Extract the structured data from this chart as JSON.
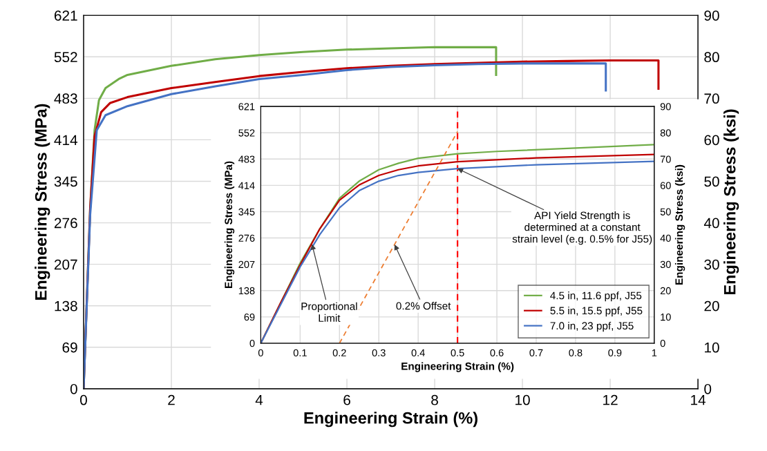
{
  "chart_data": [
    {
      "type": "line",
      "xlabel": "Engineering Strain (%)",
      "ylabel": "Engineering Stress (MPa)",
      "y2label": "Engineering Stress (ksi)",
      "xlim": [
        0,
        14
      ],
      "xticks": [
        0,
        2,
        4,
        6,
        8,
        10,
        12,
        14
      ],
      "ylim": [
        0,
        621
      ],
      "yticks": [
        0,
        69,
        138,
        207,
        276,
        345,
        414,
        483,
        552,
        621
      ],
      "y2lim": [
        0,
        90
      ],
      "y2ticks": [
        0,
        10,
        20,
        30,
        40,
        50,
        60,
        70,
        80,
        90
      ],
      "grid": true,
      "marker": "none",
      "line_style": "solid",
      "series": [
        {
          "color": "#70ad47",
          "x": [
            0,
            0.15,
            0.25,
            0.35,
            0.5,
            0.8,
            1,
            2,
            3,
            4,
            5,
            6,
            7,
            8,
            9,
            9.4,
            9.4
          ],
          "values": [
            0,
            300,
            430,
            480,
            500,
            515,
            522,
            537,
            548,
            555,
            560,
            564,
            566,
            568,
            568,
            568,
            522
          ]
        },
        {
          "color": "#c00000",
          "x": [
            0,
            0.15,
            0.25,
            0.4,
            0.6,
            1,
            2,
            3,
            4,
            5,
            6,
            7,
            8,
            9,
            10,
            11,
            12,
            13.1,
            13.1
          ],
          "values": [
            0,
            300,
            420,
            460,
            475,
            485,
            500,
            510,
            520,
            527,
            533,
            537,
            540,
            542,
            544,
            545,
            546,
            546,
            499
          ]
        },
        {
          "color": "#4472c4",
          "x": [
            0,
            0.15,
            0.3,
            0.5,
            1,
            2,
            3,
            4,
            5,
            6,
            7,
            8,
            9,
            10,
            11,
            11.9,
            11.9
          ],
          "values": [
            0,
            290,
            430,
            455,
            470,
            490,
            503,
            515,
            522,
            530,
            535,
            538,
            540,
            541,
            541,
            541,
            496
          ]
        }
      ]
    },
    {
      "type": "line",
      "xlabel": "Engineering Strain (%)",
      "ylabel": "Engineering Stress (MPa)",
      "y2label": "Engineering Stress (ksi)",
      "xlim": [
        0,
        1
      ],
      "xticks": [
        0,
        0.1,
        0.2,
        0.3,
        0.4,
        0.5,
        0.6,
        0.7,
        0.8,
        0.9,
        1
      ],
      "ylim": [
        0,
        621
      ],
      "yticks": [
        0,
        69,
        138,
        207,
        276,
        345,
        414,
        483,
        552,
        621
      ],
      "y2lim": [
        0,
        90
      ],
      "y2ticks": [
        0,
        10,
        20,
        30,
        40,
        50,
        60,
        70,
        80,
        90
      ],
      "grid": true,
      "marker": "none",
      "line_style": "solid",
      "legend": "bottom right",
      "series": [
        {
          "name": "4.5 in, 11.6 ppf, J55",
          "color": "#70ad47",
          "x": [
            0,
            0.05,
            0.1,
            0.15,
            0.2,
            0.25,
            0.3,
            0.35,
            0.4,
            0.5,
            0.6,
            0.8,
            1
          ],
          "values": [
            0,
            105,
            210,
            300,
            380,
            425,
            455,
            472,
            485,
            497,
            503,
            512,
            521
          ]
        },
        {
          "name": "5.5 in, 15.5 ppf, J55",
          "color": "#c00000",
          "x": [
            0,
            0.05,
            0.1,
            0.15,
            0.2,
            0.25,
            0.3,
            0.35,
            0.4,
            0.5,
            0.7,
            1
          ],
          "values": [
            0,
            105,
            205,
            300,
            375,
            415,
            440,
            455,
            465,
            476,
            486,
            495
          ]
        },
        {
          "name": "7.0 in, 23 ppf, J55",
          "color": "#4472c4",
          "x": [
            0,
            0.05,
            0.1,
            0.15,
            0.2,
            0.25,
            0.3,
            0.35,
            0.4,
            0.5,
            0.7,
            1
          ],
          "values": [
            0,
            100,
            200,
            285,
            355,
            400,
            425,
            440,
            448,
            458,
            468,
            477
          ]
        },
        {
          "color": "#ed7d31",
          "line_style": "dashed",
          "x": [
            0.2,
            0.5
          ],
          "values": [
            0,
            555
          ]
        }
      ],
      "ref_lines": [
        {
          "axis": "x",
          "value": 0.5,
          "color": "#ff0000",
          "line_style": "dashed"
        }
      ],
      "annotations": [
        {
          "text": "Proportional\nLimit",
          "x": 0.13,
          "y": 260
        },
        {
          "text": "0.2% Offset",
          "x": 0.34,
          "y": 259
        },
        {
          "text": "API Yield Strength is\ndetermined at a constant\nstrain level (e.g. 0.5% for J55)",
          "x": 0.5,
          "y": 458
        }
      ]
    }
  ]
}
